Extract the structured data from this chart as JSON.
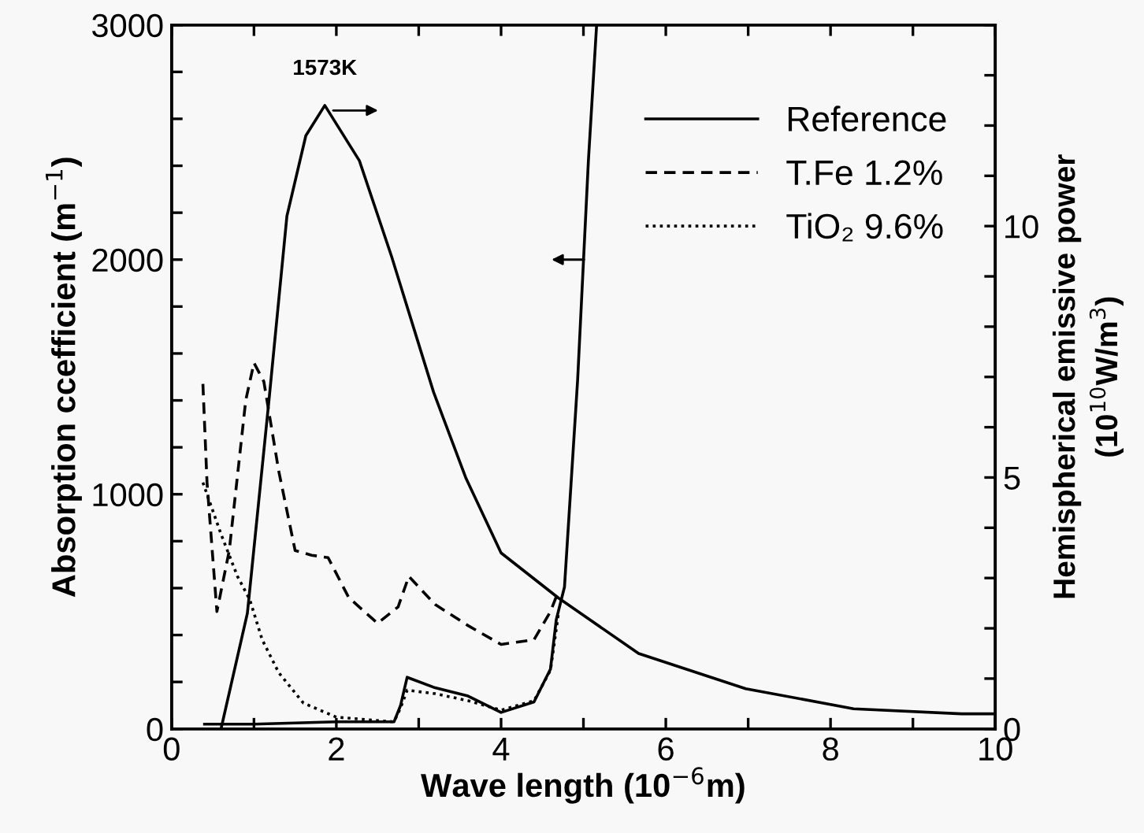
{
  "chart_data": {
    "type": "line",
    "xlabel": "Wave length (10$^{−6}$m)",
    "ylabel": "Absorption ccefficient (m$^{−1}$)",
    "y2label": "Hemispherical emissive power\n(10$^{10}$W/m$^{3}$)",
    "annotations": [
      "1573K"
    ],
    "xlim": [
      0,
      10
    ],
    "xticks": [
      0,
      {
        "value": 1,
        "label": null
      },
      2,
      {
        "value": 3,
        "label": null
      },
      4,
      {
        "value": 5,
        "label": null
      },
      6,
      {
        "value": 7,
        "label": null
      },
      8,
      {
        "value": 9,
        "label": null
      },
      10
    ],
    "ylim": [
      0,
      3000
    ],
    "yticks": [
      0,
      {
        "value": 200,
        "label": null
      },
      {
        "value": 400,
        "label": null
      },
      {
        "value": 600,
        "label": null
      },
      {
        "value": 800,
        "label": null
      },
      1000,
      {
        "value": 1200,
        "label": null
      },
      {
        "value": 1400,
        "label": null
      },
      {
        "value": 1600,
        "label": null
      },
      {
        "value": 1800,
        "label": null
      },
      2000,
      {
        "value": 2200,
        "label": null
      },
      {
        "value": 2400,
        "label": null
      },
      {
        "value": 2600,
        "label": null
      },
      {
        "value": 2800,
        "label": null
      },
      3000
    ],
    "y2lim": [
      0,
      14
    ],
    "y2ticks": [
      0,
      {
        "value": 1,
        "label": null
      },
      {
        "value": 2,
        "label": null
      },
      {
        "value": 3,
        "label": null
      },
      {
        "value": 4,
        "label": null
      },
      5,
      {
        "value": 6,
        "label": null
      },
      {
        "value": 7,
        "label": null
      },
      {
        "value": 8,
        "label": null
      },
      {
        "value": 9,
        "label": null
      },
      10,
      {
        "value": 11,
        "label": null
      },
      {
        "value": 12,
        "label": null
      },
      {
        "value": 13,
        "label": null
      },
      {
        "value": 14,
        "label": null
      }
    ],
    "grid": false,
    "legend": "top right",
    "series": [
      {
        "name": "Reference",
        "color": "#000000",
        "line_style": "solid",
        "x": [
          0.4,
          1.0,
          2.0,
          2.7,
          2.78,
          2.86,
          3.2,
          3.6,
          4.0,
          4.4,
          4.6,
          4.67,
          4.77,
          4.93,
          5.06,
          5.16
        ],
        "values": [
          20,
          20,
          30,
          30,
          100,
          220,
          175,
          140,
          70,
          115,
          255,
          465,
          605,
          1490,
          2420,
          3000
        ]
      },
      {
        "name": "T.Fe 1.2%",
        "color": "#000000",
        "line_style": "dashed",
        "x": [
          0.38,
          0.43,
          0.55,
          0.7,
          0.9,
          1.0,
          1.12,
          1.3,
          1.5,
          1.7,
          1.9,
          2.15,
          2.5,
          2.75,
          2.88,
          3.2,
          3.6,
          4.0,
          4.4,
          4.6,
          4.7
        ],
        "values": [
          1470,
          1050,
          500,
          760,
          1400,
          1560,
          1480,
          1100,
          760,
          740,
          730,
          560,
          450,
          520,
          650,
          530,
          440,
          360,
          380,
          500,
          590
        ]
      },
      {
        "name": "TiO₂ 9.6%",
        "color": "#000000",
        "line_style": "dotted",
        "x": [
          0.38,
          0.45,
          0.6,
          0.8,
          0.95,
          1.1,
          1.3,
          1.6,
          2.0,
          2.7,
          2.78,
          2.86,
          3.2,
          3.6,
          4.0,
          4.4,
          4.6,
          4.7
        ],
        "values": [
          1050,
          980,
          830,
          650,
          550,
          380,
          240,
          110,
          50,
          30,
          90,
          165,
          150,
          120,
          80,
          120,
          250,
          500
        ]
      },
      {
        "color": "#000000",
        "line_style": "solid",
        "axis": "y2",
        "x": [
          0.6,
          0.92,
          1.18,
          1.4,
          1.63,
          1.86,
          2.28,
          2.67,
          3.18,
          3.57,
          4.0,
          4.7,
          5.67,
          6.97,
          8.28,
          9.59,
          10
        ],
        "values": [
          0,
          2.3,
          6.5,
          10.2,
          11.8,
          12.4,
          11.3,
          9.4,
          6.7,
          5.0,
          3.5,
          2.6,
          1.5,
          0.8,
          0.4,
          0.3,
          0.3
        ]
      }
    ]
  }
}
